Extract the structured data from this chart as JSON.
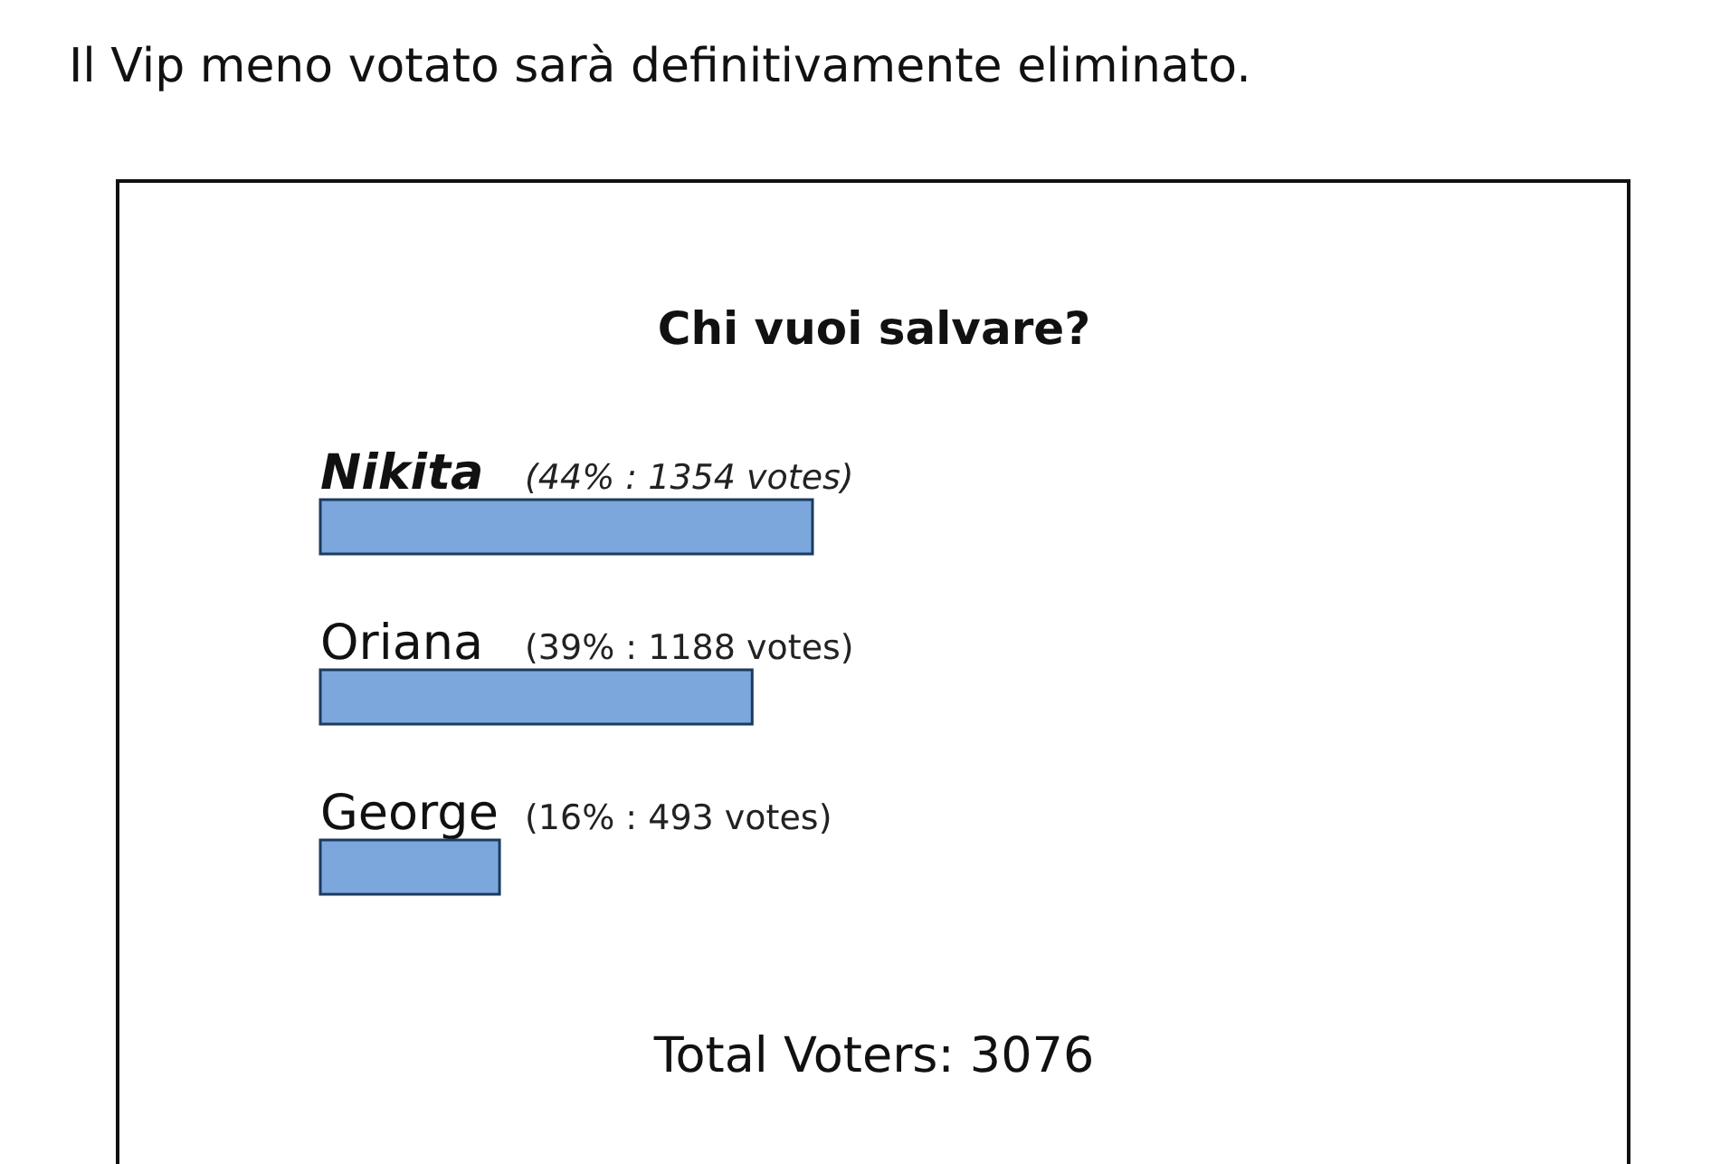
{
  "chart_data": {
    "type": "bar",
    "orientation": "horizontal",
    "title": "Il Vip meno votato sarà definitivamente eliminato.",
    "subtitle": "Chi vuoi salvare?",
    "categories": [
      "Nikita",
      "Oriana",
      "George"
    ],
    "values": [
      1354,
      1188,
      493
    ],
    "value_labels": [
      "(44% : 1354 votes)",
      "(39% : 1188 votes)",
      "(16% : 493 votes)"
    ],
    "color": "#7ba7dc",
    "annotations": [
      "Total Voters: 3076"
    ]
  }
}
